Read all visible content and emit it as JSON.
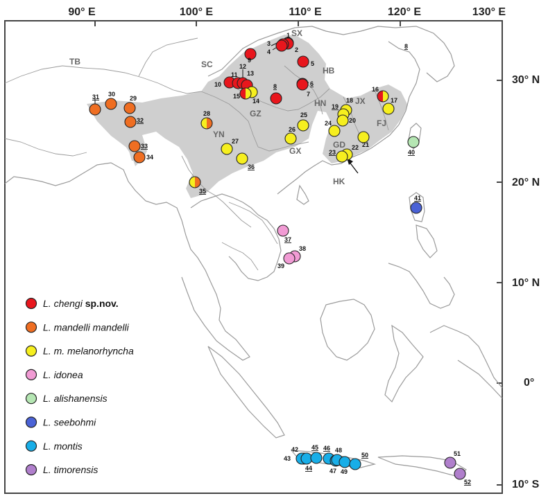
{
  "longitude_labels": [
    "90° E",
    "100° E",
    "110° E",
    "120° E",
    "130° E"
  ],
  "latitude_labels": [
    "30° N",
    "20° N",
    "10° N",
    "0°",
    "10° S"
  ],
  "regions": [
    "TB",
    "SC",
    "SX",
    "HB",
    "GZ",
    "HN",
    "JX",
    "FJ",
    "YN",
    "GX",
    "GD",
    "HK"
  ],
  "legend": [
    {
      "name": "L. chengi",
      "suffix": " sp.nov.",
      "color": "#e8161d"
    },
    {
      "name": "L. mandelli mandelli",
      "suffix": "",
      "color": "#ef6e22"
    },
    {
      "name": "L. m. melanorhyncha",
      "suffix": "",
      "color": "#f6ef1f"
    },
    {
      "name": "L. idonea",
      "suffix": "",
      "color": "#f19bd4"
    },
    {
      "name": "L. alishanensis",
      "suffix": "",
      "color": "#b5e6b3"
    },
    {
      "name": "L. seebohmi",
      "suffix": "",
      "color": "#4a62d6"
    },
    {
      "name": "L. montis",
      "suffix": "",
      "color": "#18aee8"
    },
    {
      "name": "L. timorensis",
      "suffix": "",
      "color": "#b07fcc"
    }
  ],
  "sites": [
    {
      "label": "1",
      "species": 0
    },
    {
      "label": "2",
      "species": 0
    },
    {
      "label": "3",
      "species": 0
    },
    {
      "label": "4",
      "species": 0
    },
    {
      "label": "5",
      "species": 0
    },
    {
      "label": "6",
      "species": 0
    },
    {
      "label": "7",
      "species": 0
    },
    {
      "label": "8",
      "species": 0
    },
    {
      "label": "9",
      "species": 0
    },
    {
      "label": "10",
      "species": 0
    },
    {
      "label": "11",
      "species": 0
    },
    {
      "label": "12",
      "species": 0
    },
    {
      "label": "13",
      "species": 0
    },
    {
      "label": "14",
      "species": 2
    },
    {
      "label": "15",
      "species": 0,
      "half": 2
    },
    {
      "label": "16",
      "species": 0,
      "half": 2
    },
    {
      "label": "17",
      "species": 2
    },
    {
      "label": "18",
      "species": 2
    },
    {
      "label": "19",
      "species": 2
    },
    {
      "label": "20",
      "species": 2
    },
    {
      "label": "21",
      "species": 2
    },
    {
      "label": "22",
      "species": 2
    },
    {
      "label": "23",
      "species": 2
    },
    {
      "label": "24",
      "species": 2
    },
    {
      "label": "25",
      "species": 2
    },
    {
      "label": "26",
      "species": 2
    },
    {
      "label": "27",
      "species": 2
    },
    {
      "label": "28",
      "species": 2,
      "half": 1
    },
    {
      "label": "29",
      "species": 1
    },
    {
      "label": "30",
      "species": 1
    },
    {
      "label": "31",
      "species": 1
    },
    {
      "label": "32",
      "species": 1
    },
    {
      "label": "33",
      "species": 1
    },
    {
      "label": "34",
      "species": 1
    },
    {
      "label": "35",
      "species": 2,
      "half": 1
    },
    {
      "label": "36",
      "species": 2
    },
    {
      "label": "37",
      "species": 3
    },
    {
      "label": "38",
      "species": 3
    },
    {
      "label": "39",
      "species": 3
    },
    {
      "label": "40",
      "species": 4
    },
    {
      "label": "41",
      "species": 5
    },
    {
      "label": "42",
      "species": 6
    },
    {
      "label": "43",
      "species": 6
    },
    {
      "label": "44",
      "species": 6
    },
    {
      "label": "45",
      "species": 6
    },
    {
      "label": "46",
      "species": 6
    },
    {
      "label": "47",
      "species": 6
    },
    {
      "label": "48",
      "species": 6
    },
    {
      "label": "49",
      "species": 6
    },
    {
      "label": "50",
      "species": 6
    },
    {
      "label": "51",
      "species": 7
    },
    {
      "label": "52",
      "species": 7
    }
  ],
  "top_right_label": "8"
}
